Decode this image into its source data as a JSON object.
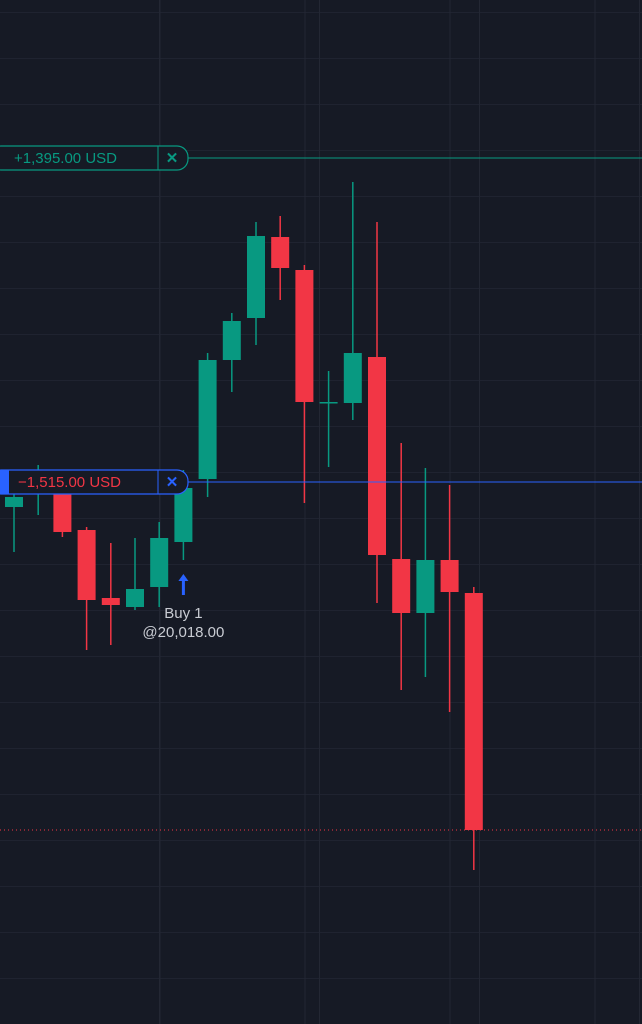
{
  "chart_data": {
    "type": "candlestick",
    "ylim": [
      19576,
      20600
    ],
    "up_color": "#089981",
    "down_color": "#f23645",
    "open": [
      20093,
      20107,
      20107,
      20070,
      20002,
      19993,
      20013,
      20058,
      20121,
      20240,
      20282,
      20363,
      20330,
      20198,
      20197,
      20243,
      20041,
      19987,
      20040,
      20007
    ],
    "high": [
      20130,
      20135,
      20110,
      20073,
      20057,
      20062,
      20078,
      20130,
      20247,
      20287,
      20378,
      20384,
      20335,
      20229,
      20418,
      20378,
      20157,
      20132,
      20115,
      20013
    ],
    "low": [
      20048,
      20085,
      20063,
      19950,
      19955,
      19990,
      19993,
      20040,
      20103,
      20208,
      20255,
      20300,
      20097,
      20133,
      20180,
      19997,
      19910,
      19923,
      19888,
      19730
    ],
    "close": [
      20103,
      20107,
      20068,
      20000,
      19995,
      20011,
      20062,
      20112,
      20240,
      20279,
      20364,
      20332,
      20198,
      20198,
      20247,
      20045,
      19987,
      20040,
      20008,
      19770
    ],
    "orders": [
      {
        "label": "+1,395.00 USD",
        "price": 20442,
        "color": "#089981"
      },
      {
        "label": "−1,515.00 USD",
        "price": 20118,
        "color": "#2962ff"
      }
    ],
    "trade": {
      "index": 7,
      "text": "Buy 1",
      "price_label": "@20,018.00",
      "price": 20018
    }
  }
}
